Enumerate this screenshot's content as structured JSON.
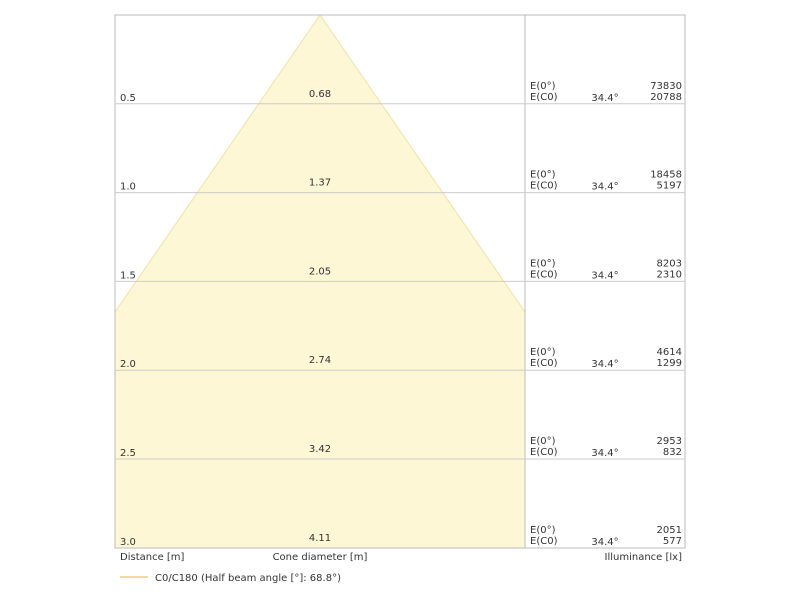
{
  "rows": [
    {
      "distance": "0.5",
      "diameter": "0.68",
      "e0": "E(0°)",
      "ec0": "E(C0)",
      "angle": "34.4°",
      "e0_value": "73830",
      "ec0_value": "20788"
    },
    {
      "distance": "1.0",
      "diameter": "1.37",
      "e0": "E(0°)",
      "ec0": "E(C0)",
      "angle": "34.4°",
      "e0_value": "18458",
      "ec0_value": "5197"
    },
    {
      "distance": "1.5",
      "diameter": "2.05",
      "e0": "E(0°)",
      "ec0": "E(C0)",
      "angle": "34.4°",
      "e0_value": "8203",
      "ec0_value": "2310"
    },
    {
      "distance": "2.0",
      "diameter": "2.74",
      "e0": "E(0°)",
      "ec0": "E(C0)",
      "angle": "34.4°",
      "e0_value": "4614",
      "ec0_value": "1299"
    },
    {
      "distance": "2.5",
      "diameter": "3.42",
      "e0": "E(0°)",
      "ec0": "E(C0)",
      "angle": "34.4°",
      "e0_value": "2953",
      "ec0_value": "832"
    },
    {
      "distance": "3.0",
      "diameter": "4.11",
      "e0": "E(0°)",
      "ec0": "E(C0)",
      "angle": "34.4°",
      "e0_value": "2051",
      "ec0_value": "577"
    }
  ],
  "footer": {
    "distance": "Distance [m]",
    "diameter": "Cone diameter [m]",
    "illuminance": "Illuminance [lx]"
  },
  "legend": {
    "label": "C0/C180 (Half beam angle [°]: 68.8°)"
  }
}
